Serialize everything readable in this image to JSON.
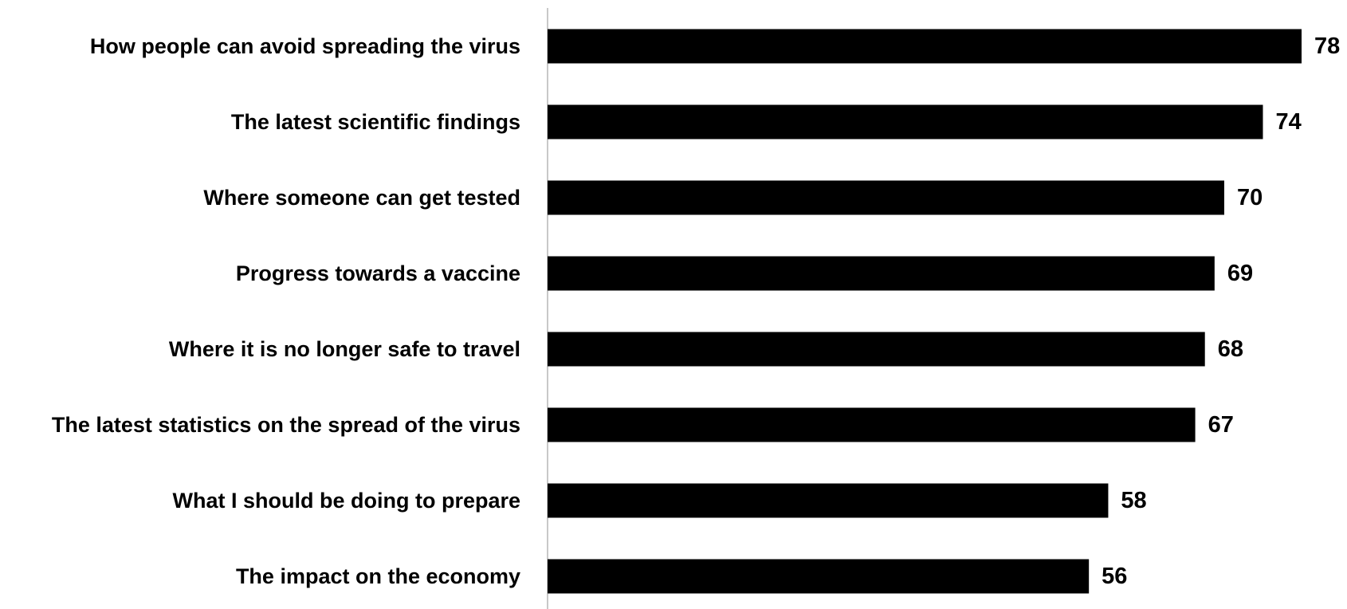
{
  "chart_data": {
    "type": "bar",
    "orientation": "horizontal",
    "categories": [
      "How people can avoid spreading the virus",
      "The latest scientific findings",
      "Where someone can get tested",
      "Progress towards a vaccine",
      "Where it is no longer safe to travel",
      "The latest statistics on the spread of the virus",
      "What I should be doing to prepare",
      "The impact on the economy"
    ],
    "values": [
      78,
      74,
      70,
      69,
      68,
      67,
      58,
      56
    ],
    "value_labels": [
      "78",
      "74",
      "70",
      "69",
      "68",
      "67",
      "58",
      "56"
    ],
    "title": "",
    "xlabel": "",
    "ylabel": "",
    "xlim": [
      0,
      78
    ],
    "grid": false,
    "legend": "none",
    "data_labels": "outside-end",
    "bar_color": "#000000",
    "axis_color": "#c8c8c8"
  }
}
